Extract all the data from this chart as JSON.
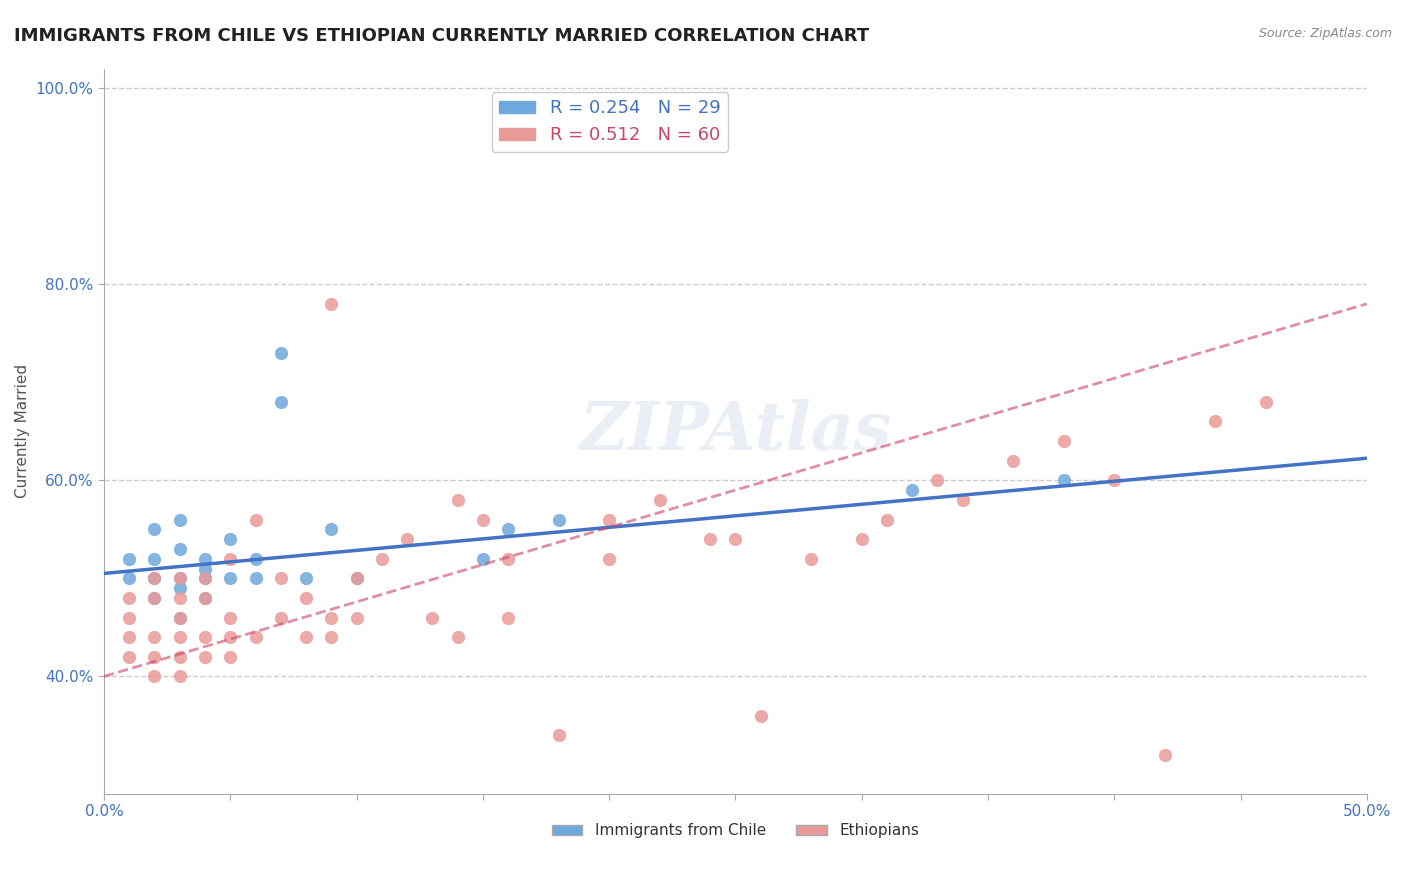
{
  "title": "IMMIGRANTS FROM CHILE VS ETHIOPIAN CURRENTLY MARRIED CORRELATION CHART",
  "source_text": "Source: ZipAtlas.com",
  "xlabel": "",
  "ylabel": "Currently Married",
  "xlim": [
    0.0,
    0.5
  ],
  "ylim": [
    0.28,
    1.02
  ],
  "yticks": [
    0.4,
    0.6,
    0.8,
    1.0
  ],
  "ytick_labels": [
    "40.0%",
    "60.0%",
    "80.0%",
    "100.0%"
  ],
  "xticks": [
    0.0,
    0.05,
    0.1,
    0.15,
    0.2,
    0.25,
    0.3,
    0.35,
    0.4,
    0.45,
    0.5
  ],
  "xtick_labels": [
    "0.0%",
    "",
    "",
    "",
    "",
    "",
    "",
    "",
    "",
    "",
    "50.0%"
  ],
  "legend_chile": "R = 0.254   N = 29",
  "legend_ethiopian": "R = 0.512   N = 60",
  "chile_color": "#6fa8dc",
  "ethiopian_color": "#ea9999",
  "chile_line_color": "#4472c4",
  "ethiopian_line_color": "#cc4466",
  "watermark": "ZIPAtlas",
  "chile_scatter_x": [
    0.01,
    0.01,
    0.02,
    0.02,
    0.02,
    0.02,
    0.03,
    0.03,
    0.03,
    0.03,
    0.03,
    0.04,
    0.04,
    0.04,
    0.04,
    0.05,
    0.05,
    0.06,
    0.06,
    0.07,
    0.07,
    0.08,
    0.09,
    0.1,
    0.15,
    0.16,
    0.18,
    0.32,
    0.38
  ],
  "chile_scatter_y": [
    0.5,
    0.52,
    0.48,
    0.5,
    0.52,
    0.55,
    0.46,
    0.49,
    0.5,
    0.53,
    0.56,
    0.48,
    0.5,
    0.51,
    0.52,
    0.5,
    0.54,
    0.5,
    0.52,
    0.68,
    0.73,
    0.5,
    0.55,
    0.5,
    0.52,
    0.55,
    0.56,
    0.59,
    0.6
  ],
  "ethiopian_scatter_x": [
    0.01,
    0.01,
    0.01,
    0.01,
    0.02,
    0.02,
    0.02,
    0.02,
    0.02,
    0.03,
    0.03,
    0.03,
    0.03,
    0.03,
    0.03,
    0.04,
    0.04,
    0.04,
    0.04,
    0.05,
    0.05,
    0.05,
    0.05,
    0.06,
    0.06,
    0.07,
    0.07,
    0.08,
    0.08,
    0.09,
    0.09,
    0.09,
    0.1,
    0.1,
    0.11,
    0.12,
    0.13,
    0.14,
    0.14,
    0.15,
    0.16,
    0.16,
    0.18,
    0.2,
    0.2,
    0.22,
    0.24,
    0.25,
    0.26,
    0.28,
    0.3,
    0.31,
    0.33,
    0.34,
    0.36,
    0.38,
    0.4,
    0.42,
    0.44,
    0.46
  ],
  "ethiopian_scatter_y": [
    0.42,
    0.44,
    0.46,
    0.48,
    0.4,
    0.42,
    0.44,
    0.48,
    0.5,
    0.4,
    0.42,
    0.44,
    0.46,
    0.48,
    0.5,
    0.42,
    0.44,
    0.48,
    0.5,
    0.42,
    0.44,
    0.46,
    0.52,
    0.44,
    0.56,
    0.46,
    0.5,
    0.44,
    0.48,
    0.44,
    0.46,
    0.78,
    0.46,
    0.5,
    0.52,
    0.54,
    0.46,
    0.44,
    0.58,
    0.56,
    0.46,
    0.52,
    0.34,
    0.52,
    0.56,
    0.58,
    0.54,
    0.54,
    0.36,
    0.52,
    0.54,
    0.56,
    0.6,
    0.58,
    0.62,
    0.64,
    0.6,
    0.32,
    0.66,
    0.68
  ],
  "chile_line_x": [
    0.0,
    0.5
  ],
  "chile_line_y_intercept": 0.505,
  "chile_line_slope": 0.235,
  "ethiopian_line_x": [
    0.0,
    0.5
  ],
  "ethiopian_line_y_intercept": 0.4,
  "ethiopian_line_slope": 0.76,
  "title_fontsize": 13,
  "axis_label_fontsize": 11,
  "tick_fontsize": 11,
  "legend_fontsize": 13,
  "background_color": "#ffffff",
  "grid_color": "#cccccc",
  "tick_color": "#4472c4"
}
